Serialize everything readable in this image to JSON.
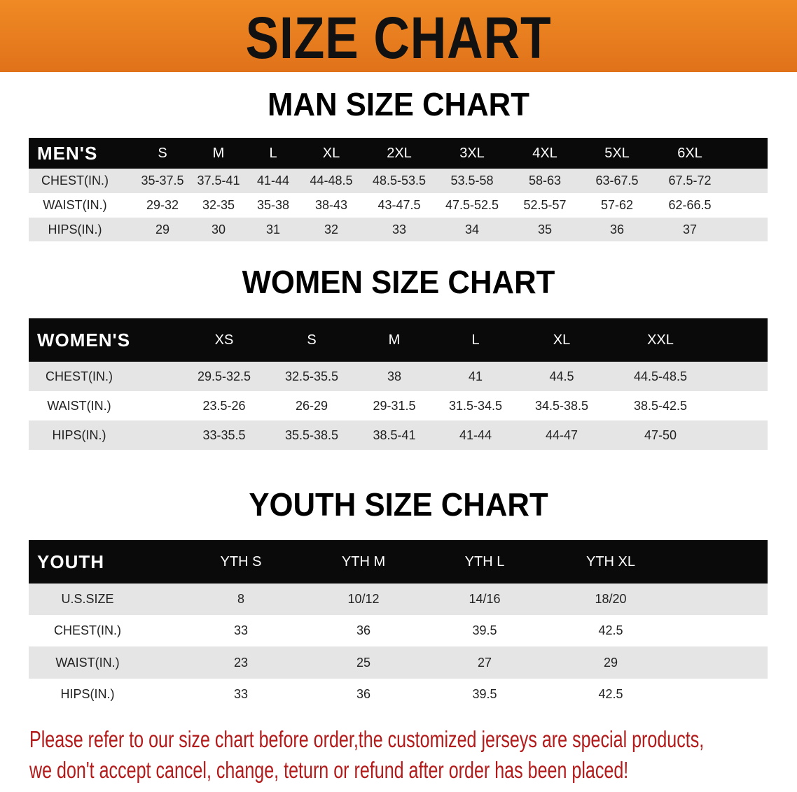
{
  "banner": {
    "title": "SIZE CHART",
    "color": "#e87a1c"
  },
  "men": {
    "title": "MAN SIZE CHART",
    "header": [
      "MEN'S",
      "S",
      "M",
      "L",
      "XL",
      "2XL",
      "3XL",
      "4XL",
      "5XL",
      "6XL"
    ],
    "rows": [
      [
        "CHEST(IN.)",
        "35-37.5",
        "37.5-41",
        "41-44",
        "44-48.5",
        "48.5-53.5",
        "53.5-58",
        "58-63",
        "63-67.5",
        "67.5-72"
      ],
      [
        "WAIST(IN.)",
        "29-32",
        "32-35",
        "35-38",
        "38-43",
        "43-47.5",
        "47.5-52.5",
        "52.5-57",
        "57-62",
        "62-66.5"
      ],
      [
        "HIPS(IN.)",
        "29",
        "30",
        "31",
        "32",
        "33",
        "34",
        "35",
        "36",
        "37"
      ]
    ]
  },
  "women": {
    "title": "WOMEN SIZE CHART",
    "header": [
      "WOMEN'S",
      "XS",
      "S",
      "M",
      "L",
      "XL",
      "XXL"
    ],
    "rows": [
      [
        "CHEST(IN.)",
        "29.5-32.5",
        "32.5-35.5",
        "38",
        "41",
        "44.5",
        "44.5-48.5"
      ],
      [
        "WAIST(IN.)",
        "23.5-26",
        "26-29",
        "29-31.5",
        "31.5-34.5",
        "34.5-38.5",
        "38.5-42.5"
      ],
      [
        "HIPS(IN.)",
        "33-35.5",
        "35.5-38.5",
        "38.5-41",
        "41-44",
        "44-47",
        "47-50"
      ]
    ]
  },
  "youth": {
    "title": "YOUTH SIZE CHART",
    "header": [
      "YOUTH",
      "YTH S",
      "YTH M",
      "YTH L",
      "YTH XL"
    ],
    "rows": [
      [
        "U.S.SIZE",
        "8",
        "10/12",
        "14/16",
        "18/20"
      ],
      [
        "CHEST(IN.)",
        "33",
        "36",
        "39.5",
        "42.5"
      ],
      [
        "WAIST(IN.)",
        "23",
        "25",
        "27",
        "29"
      ],
      [
        "HIPS(IN.)",
        "33",
        "36",
        "39.5",
        "42.5"
      ]
    ]
  },
  "note": {
    "line1": "Please refer to our size chart before order,the customized jerseys are special products,",
    "line2": "we don't accept cancel, change, teturn or refund after order has been placed!",
    "color": "#b31b1b"
  }
}
